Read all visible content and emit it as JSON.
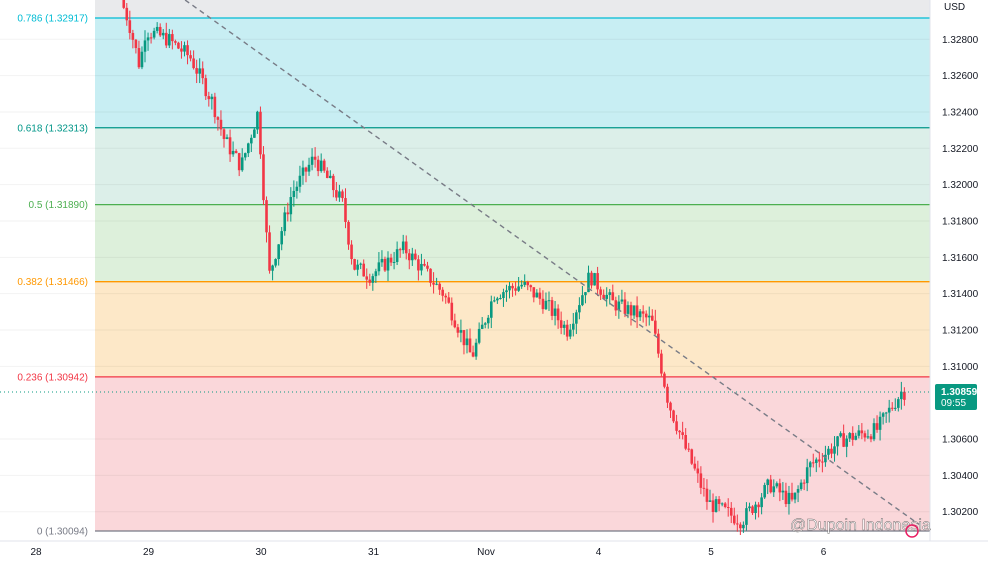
{
  "chart_data": {
    "type": "candlestick",
    "currency_label": "USD",
    "last_price_label": "1.30859",
    "countdown_label": "09:55",
    "watermark": "@Dupoin Indonesia",
    "y_ticks": [
      "1.32800",
      "1.32600",
      "1.32400",
      "1.32200",
      "1.32000",
      "1.31800",
      "1.31600",
      "1.31400",
      "1.31200",
      "1.31000",
      "1.30600",
      "1.30400",
      "1.30200"
    ],
    "x_ticks": [
      "28",
      "29",
      "30",
      "31",
      "Nov",
      "4",
      "5",
      "6"
    ],
    "x_tick_positions": [
      0,
      1,
      2,
      3,
      4,
      5,
      6,
      7
    ],
    "fib_levels": [
      {
        "label": "0.786 (1.32917)",
        "price": 1.32917,
        "color": "#00bcd4",
        "fill": "#c8eef3"
      },
      {
        "label": "0.618 (1.32313)",
        "price": 1.32313,
        "color": "#009688",
        "fill": "#dcefe9"
      },
      {
        "label": "0.5 (1.31890)",
        "price": 1.3189,
        "color": "#4caf50",
        "fill": "#ddf0db"
      },
      {
        "label": "0.382 (1.31466)",
        "price": 1.31466,
        "color": "#ff9800",
        "fill": "#fde8c8"
      },
      {
        "label": "0.236 (1.30942)",
        "price": 1.30942,
        "color": "#f23645",
        "fill": "#fad7da"
      },
      {
        "label": "0 (1.30094)",
        "price": 1.30094,
        "color": "#787b86",
        "fill": "#fad7da"
      }
    ],
    "price_path": [
      [
        0.78,
        1.3302
      ],
      [
        0.85,
        1.329
      ],
      [
        0.95,
        1.3265
      ],
      [
        1.0,
        1.3285
      ],
      [
        1.2,
        1.328
      ],
      [
        1.4,
        1.327
      ],
      [
        1.6,
        1.3245
      ],
      [
        1.7,
        1.3225
      ],
      [
        1.85,
        1.321
      ],
      [
        2.0,
        1.324
      ],
      [
        2.1,
        1.315
      ],
      [
        2.3,
        1.3195
      ],
      [
        2.5,
        1.3215
      ],
      [
        2.75,
        1.319
      ],
      [
        2.85,
        1.3155
      ],
      [
        3.0,
        1.315
      ],
      [
        3.3,
        1.3165
      ],
      [
        3.65,
        1.314
      ],
      [
        3.9,
        1.3105
      ],
      [
        4.1,
        1.314
      ],
      [
        4.35,
        1.3145
      ],
      [
        4.55,
        1.3135
      ],
      [
        4.75,
        1.312
      ],
      [
        4.95,
        1.315
      ],
      [
        5.15,
        1.3135
      ],
      [
        5.5,
        1.3125
      ],
      [
        5.65,
        1.308
      ],
      [
        5.8,
        1.3055
      ],
      [
        6.0,
        1.3025
      ],
      [
        6.3,
        1.3015
      ],
      [
        6.55,
        1.3035
      ],
      [
        6.75,
        1.3025
      ],
      [
        6.9,
        1.3045
      ],
      [
        7.2,
        1.306
      ],
      [
        7.5,
        1.3065
      ],
      [
        7.72,
        1.3086
      ]
    ],
    "trendline": {
      "from": [
        1.0,
        1.3316
      ],
      "to": [
        7.85,
        1.3013
      ]
    },
    "current_price": 1.30859
  }
}
